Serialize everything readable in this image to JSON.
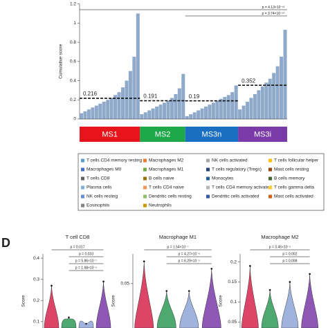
{
  "chart_data": [
    {
      "type": "bar",
      "ylabel": "Cumulative score",
      "ylim": [
        0,
        1.2
      ],
      "yticks": [
        0,
        0.2,
        0.4,
        0.6,
        0.8,
        1,
        1.2
      ],
      "groups": [
        {
          "name": "MS1",
          "color": "#e8141c",
          "mean": 0.216,
          "values": [
            0.06,
            0.08,
            0.1,
            0.12,
            0.14,
            0.16,
            0.18,
            0.2,
            0.22,
            0.25,
            0.28,
            0.33,
            0.4,
            0.5,
            0.65,
            1.1
          ]
        },
        {
          "name": "MS2",
          "color": "#1fa84a",
          "mean": 0.191,
          "values": [
            0.05,
            0.07,
            0.09,
            0.11,
            0.13,
            0.15,
            0.17,
            0.19,
            0.22,
            0.26,
            0.32,
            0.47
          ]
        },
        {
          "name": "MS3n",
          "color": "#1a6fc2",
          "mean": 0.19,
          "values": [
            0.03,
            0.05,
            0.07,
            0.09,
            0.11,
            0.13,
            0.15,
            0.17,
            0.19,
            0.21,
            0.23,
            0.25,
            0.28,
            0.35
          ]
        },
        {
          "name": "MS3i",
          "color": "#7a3aa8",
          "mean": 0.352,
          "values": [
            0.1,
            0.14,
            0.18,
            0.22,
            0.26,
            0.3,
            0.34,
            0.38,
            0.42,
            0.48,
            0.55,
            0.65,
            0.93
          ]
        }
      ],
      "bar_color": "#8ea9c9",
      "comparisons": [
        {
          "from": 0,
          "to": 3,
          "label": "p = 4.13×10⁻¹²"
        },
        {
          "from": 2,
          "to": 3,
          "label": "p = 3.74×10⁻¹⁰"
        }
      ],
      "legend": [
        {
          "name": "T cells CD4 memory resting",
          "color": "#5b9bd5"
        },
        {
          "name": "Macrophages M2",
          "color": "#ed7d31"
        },
        {
          "name": "NK cells activated",
          "color": "#a5a5a5"
        },
        {
          "name": "T cells follicular helper",
          "color": "#ffc000"
        },
        {
          "name": "Macrophages M0",
          "color": "#4472c4"
        },
        {
          "name": "Macrophages M1",
          "color": "#70ad47"
        },
        {
          "name": "T cells regulatory (Tregs)",
          "color": "#264478"
        },
        {
          "name": "Mast cells resting",
          "color": "#9e480e"
        },
        {
          "name": "T cells CD8",
          "color": "#636363"
        },
        {
          "name": "B cells naive",
          "color": "#997300"
        },
        {
          "name": "Monocytes",
          "color": "#255e91"
        },
        {
          "name": "B cells memory",
          "color": "#43682b"
        },
        {
          "name": "Plasma cells",
          "color": "#7cafdd"
        },
        {
          "name": "T cells CD4 naive",
          "color": "#f1975a"
        },
        {
          "name": "T cells CD4 memory activated",
          "color": "#b7b7b7"
        },
        {
          "name": "T cells gamma delta",
          "color": "#ffcd33"
        },
        {
          "name": "NK cells resting",
          "color": "#698ed0"
        },
        {
          "name": "Dendritic cells resting",
          "color": "#8cc168"
        },
        {
          "name": "Dendritic cells activated",
          "color": "#335aa1"
        },
        {
          "name": "Mast cells activated",
          "color": "#d26012"
        },
        {
          "name": "Eosinophils",
          "color": "#848484"
        },
        {
          "name": "Neutrophils",
          "color": "#cc9a00"
        }
      ]
    },
    {
      "type": "violin",
      "panel": "D",
      "title": "T cell CD8",
      "ylabel": "Score",
      "ylim": [
        0.07,
        0.42
      ],
      "yticks": [
        0.1,
        0.2,
        0.3,
        0.4
      ],
      "colors": [
        "#d6254a",
        "#2e9a57",
        "#8fa4d8",
        "#7a3aa8"
      ],
      "max": [
        0.27,
        0.12,
        0.09,
        0.29
      ],
      "p_labels": [
        "p = 0.017",
        "p = 0.033",
        "p = 5.86×10⁻⁷",
        "p = 1.68×10⁻⁵"
      ]
    },
    {
      "type": "violin",
      "title": "Macrophage M1",
      "ylabel": "Score",
      "ylim": [
        0.02,
        0.07
      ],
      "yticks": [
        0.05
      ],
      "colors": [
        "#d6254a",
        "#2e9a57",
        "#8fa4d8",
        "#7a3aa8"
      ],
      "max": [
        0.065,
        0.045,
        0.045,
        0.06
      ],
      "p_labels": [
        "p = 1.54×10⁻⁷",
        "p = 4.27×10⁻⁶",
        "p = 6.29×10⁻⁵"
      ]
    },
    {
      "type": "violin",
      "title": "Macrophage M2",
      "ylabel": "Score",
      "ylim": [
        0.035,
        0.22
      ],
      "yticks": [
        0.05,
        0.1,
        0.15,
        0.2
      ],
      "colors": [
        "#d6254a",
        "#2e9a57",
        "#8fa4d8",
        "#7a3aa8"
      ],
      "max": [
        0.19,
        0.13,
        0.15,
        0.17
      ],
      "p_labels": [
        "p = 3.45×10⁻⁵",
        "p = 0.002",
        "p = 0.008"
      ]
    }
  ]
}
